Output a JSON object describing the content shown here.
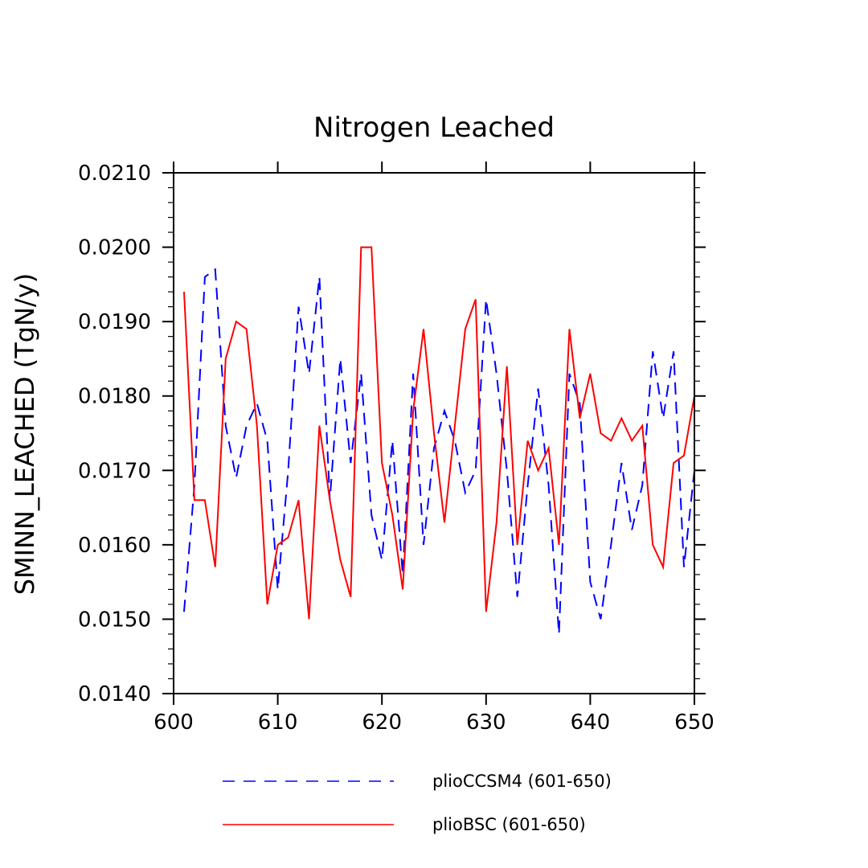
{
  "chart_data": {
    "type": "line",
    "title": "Nitrogen Leached",
    "ylabel": "SMINN_LEACHED  (TgN/y)",
    "xlabel": "",
    "xlim": [
      600,
      650
    ],
    "ylim": [
      0.014,
      0.021
    ],
    "x_ticks": [
      600,
      610,
      620,
      630,
      640,
      650
    ],
    "x_tick_labels": [
      "600",
      "610",
      "620",
      "630",
      "640",
      "650"
    ],
    "y_ticks": [
      0.014,
      0.015,
      0.016,
      0.017,
      0.018,
      0.019,
      0.02,
      0.021
    ],
    "y_tick_labels": [
      "0.0140",
      "0.0150",
      "0.0160",
      "0.0170",
      "0.0180",
      "0.0190",
      "0.0200",
      "0.0210"
    ],
    "legend_position": "bottom",
    "x": [
      601,
      602,
      603,
      604,
      605,
      606,
      607,
      608,
      609,
      610,
      611,
      612,
      613,
      614,
      615,
      616,
      617,
      618,
      619,
      620,
      621,
      622,
      623,
      624,
      625,
      626,
      627,
      628,
      629,
      630,
      631,
      632,
      633,
      634,
      635,
      636,
      637,
      638,
      639,
      640,
      641,
      642,
      643,
      644,
      645,
      646,
      647,
      648,
      649,
      650
    ],
    "series": [
      {
        "name": "plioCCSM4 (601-650)",
        "color": "#0000ff",
        "dash": "dashed",
        "values": [
          0.0151,
          0.0168,
          0.0196,
          0.0197,
          0.0176,
          0.0169,
          0.0176,
          0.0179,
          0.0174,
          0.0154,
          0.017,
          0.0192,
          0.0183,
          0.0196,
          0.0166,
          0.0185,
          0.0171,
          0.0183,
          0.0164,
          0.0158,
          0.0174,
          0.0156,
          0.0183,
          0.016,
          0.0173,
          0.0178,
          0.0174,
          0.0167,
          0.017,
          0.0193,
          0.0183,
          0.017,
          0.0153,
          0.0168,
          0.0181,
          0.0168,
          0.0148,
          0.0183,
          0.0179,
          0.0155,
          0.015,
          0.016,
          0.0171,
          0.0162,
          0.0168,
          0.0186,
          0.0177,
          0.0186,
          0.0157,
          0.017
        ]
      },
      {
        "name": "plioBSC (601-650)",
        "color": "#ff0000",
        "dash": "solid",
        "values": [
          0.0194,
          0.0166,
          0.0166,
          0.0157,
          0.0185,
          0.019,
          0.0189,
          0.0176,
          0.0152,
          0.016,
          0.0161,
          0.0166,
          0.015,
          0.0176,
          0.0166,
          0.0158,
          0.0153,
          0.02,
          0.02,
          0.0171,
          0.0164,
          0.0154,
          0.0178,
          0.0189,
          0.0175,
          0.0163,
          0.0176,
          0.0189,
          0.0193,
          0.0151,
          0.0163,
          0.0184,
          0.016,
          0.0174,
          0.017,
          0.0173,
          0.016,
          0.0189,
          0.0177,
          0.0183,
          0.0175,
          0.0174,
          0.0177,
          0.0174,
          0.0176,
          0.016,
          0.0157,
          0.0171,
          0.0172,
          0.018
        ]
      }
    ]
  }
}
